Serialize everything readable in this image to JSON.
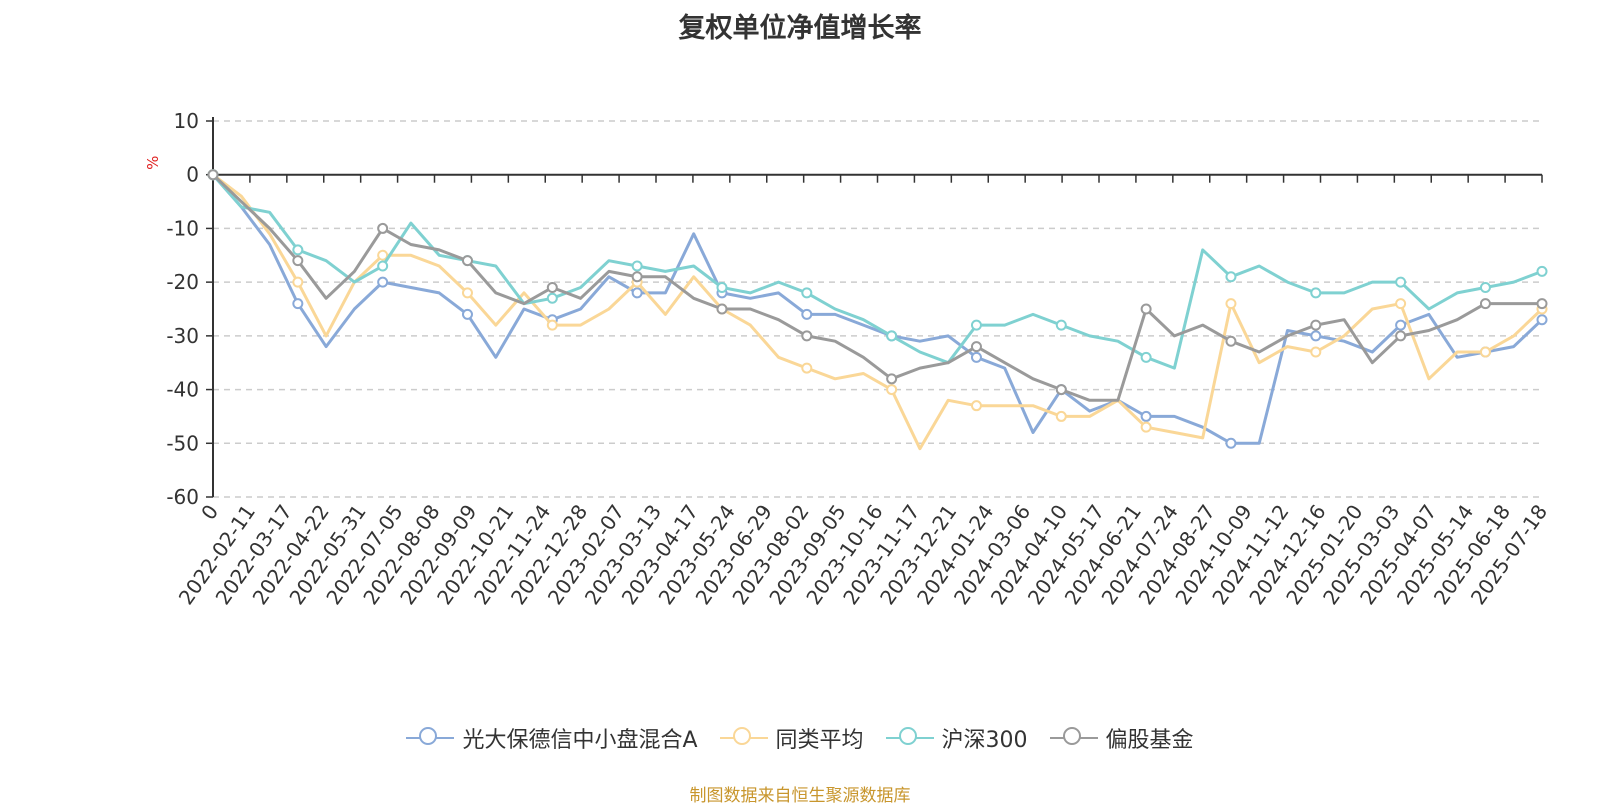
{
  "chart_data": {
    "type": "line",
    "title": "复权单位净值增长率",
    "ylabel": "%",
    "ylim": [
      -60,
      10
    ],
    "yticks": [
      10,
      0,
      -10,
      -20,
      -30,
      -40,
      -50,
      -60
    ],
    "grid": true,
    "legend_position": "bottom",
    "source_note": "制图数据来自恒生聚源数据库",
    "x_tick_labels": [
      "0",
      "2022-02-11",
      "2022-03-17",
      "2022-04-22",
      "2022-05-31",
      "2022-07-05",
      "2022-08-08",
      "2022-09-09",
      "2022-10-21",
      "2022-11-24",
      "2022-12-28",
      "2023-02-07",
      "2023-03-13",
      "2023-04-17",
      "2023-05-24",
      "2023-06-29",
      "2023-08-02",
      "2023-09-05",
      "2023-10-16",
      "2023-11-17",
      "2023-12-21",
      "2024-01-24",
      "2024-03-06",
      "2024-04-10",
      "2024-05-17",
      "2024-06-21",
      "2024-07-24",
      "2024-08-27",
      "2024-10-09",
      "2024-11-12",
      "2024-12-16",
      "2025-01-20",
      "2025-03-03",
      "2025-04-07",
      "2025-05-14",
      "2025-06-18",
      "2025-07-18"
    ],
    "series": [
      {
        "name": "光大保德信中小盘混合A",
        "color": "#89a9d8",
        "values": [
          0,
          -6,
          -13,
          -24,
          -32,
          -25,
          -20,
          -21,
          -22,
          -26,
          -34,
          -25,
          -27,
          -25,
          -19,
          -22,
          -22,
          -11,
          -22,
          -23,
          -22,
          -26,
          -26,
          -28,
          -30,
          -31,
          -30,
          -34,
          -36,
          -48,
          -40,
          -44,
          -42,
          -45,
          -45,
          -47,
          -50,
          -50,
          -29,
          -30,
          -31,
          -33,
          -28,
          -26,
          -34,
          -33,
          -32,
          -27
        ]
      },
      {
        "name": "同类平均",
        "color": "#fad797",
        "values": [
          0,
          -4,
          -11,
          -20,
          -30,
          -20,
          -15,
          -15,
          -17,
          -22,
          -28,
          -22,
          -28,
          -28,
          -25,
          -20,
          -26,
          -19,
          -25,
          -28,
          -34,
          -36,
          -38,
          -37,
          -40,
          -51,
          -42,
          -43,
          -43,
          -43,
          -45,
          -45,
          -42,
          -47,
          -48,
          -49,
          -24,
          -35,
          -32,
          -33,
          -30,
          -25,
          -24,
          -38,
          -33,
          -33,
          -30,
          -25
        ]
      },
      {
        "name": "沪深300",
        "color": "#7fd1d1",
        "values": [
          0,
          -6,
          -7,
          -14,
          -16,
          -20,
          -17,
          -9,
          -15,
          -16,
          -17,
          -24,
          -23,
          -21,
          -16,
          -17,
          -18,
          -17,
          -21,
          -22,
          -20,
          -22,
          -25,
          -27,
          -30,
          -33,
          -35,
          -28,
          -28,
          -26,
          -28,
          -30,
          -31,
          -34,
          -36,
          -14,
          -19,
          -17,
          -20,
          -22,
          -22,
          -20,
          -20,
          -25,
          -22,
          -21,
          -20,
          -18
        ]
      },
      {
        "name": "偏股基金",
        "color": "#9a9a9a",
        "values": [
          0,
          -5,
          -10,
          -16,
          -23,
          -18,
          -10,
          -13,
          -14,
          -16,
          -22,
          -24,
          -21,
          -23,
          -18,
          -19,
          -19,
          -23,
          -25,
          -25,
          -27,
          -30,
          -31,
          -34,
          -38,
          -36,
          -35,
          -32,
          -35,
          -38,
          -40,
          -42,
          -42,
          -25,
          -30,
          -28,
          -31,
          -33,
          -30,
          -28,
          -27,
          -35,
          -30,
          -29,
          -27,
          -24,
          -24,
          -24
        ]
      }
    ]
  }
}
